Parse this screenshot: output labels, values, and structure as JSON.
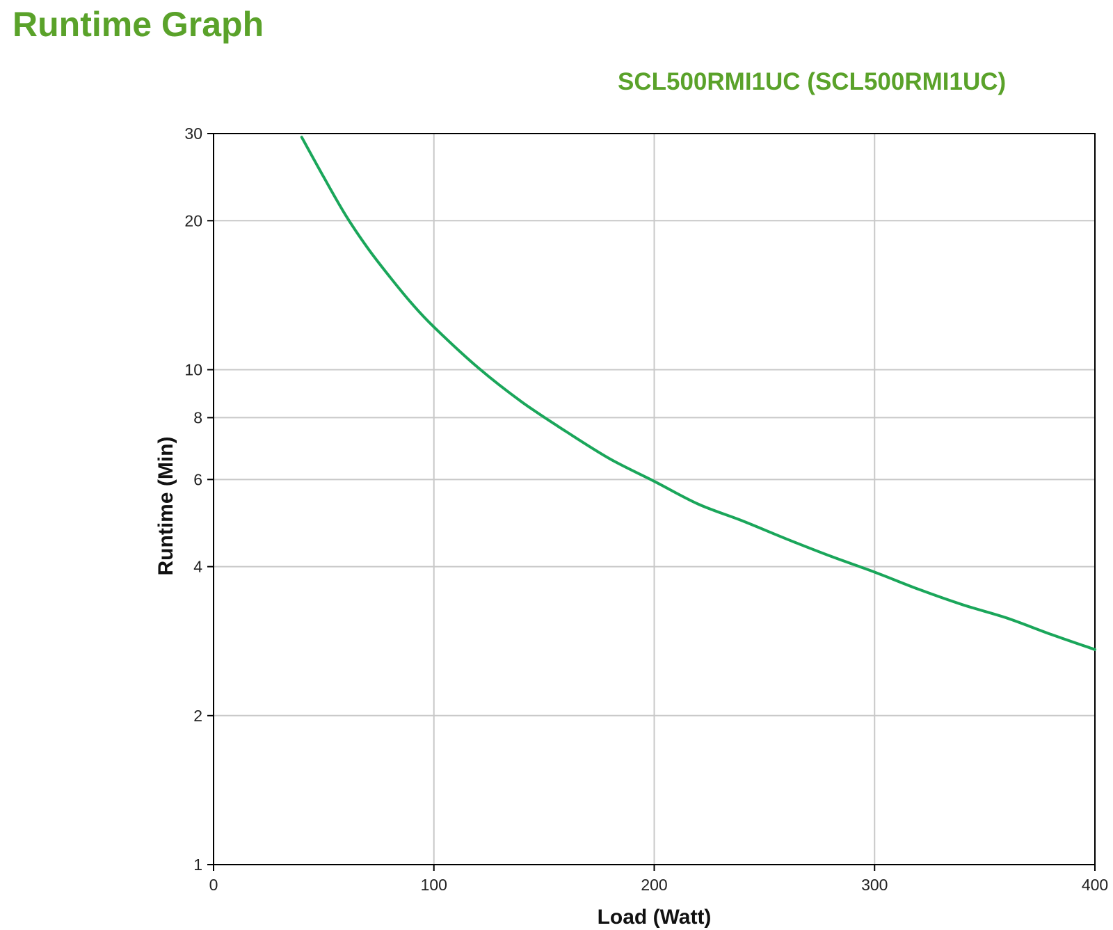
{
  "page": {
    "title": "Runtime Graph"
  },
  "chart_data": {
    "type": "line",
    "title": "SCL500RMI1UC (SCL500RMI1UC)",
    "xlabel": "Load (Watt)",
    "ylabel": "Runtime (Min)",
    "xlim": [
      0,
      400
    ],
    "ylim": [
      1,
      30
    ],
    "y_scale": "log",
    "x_ticks": [
      0,
      100,
      200,
      300,
      400
    ],
    "y_ticks": [
      1,
      2,
      4,
      6,
      8,
      10,
      20,
      30
    ],
    "grid": true,
    "legend": "none",
    "colors": {
      "line": "#1aa65a",
      "title": "#5aa22a",
      "grid": "#c8c8c8",
      "axis": "#000000"
    },
    "series": [
      {
        "x": [
          40,
          50,
          60,
          70,
          80,
          90,
          100,
          120,
          140,
          160,
          180,
          200,
          220,
          240,
          260,
          280,
          300,
          320,
          340,
          360,
          380,
          400
        ],
        "values": [
          29.5,
          24.5,
          20.5,
          17.6,
          15.4,
          13.6,
          12.2,
          10.1,
          8.6,
          7.5,
          6.6,
          5.95,
          5.35,
          4.95,
          4.55,
          4.2,
          3.9,
          3.6,
          3.35,
          3.15,
          2.92,
          2.72
        ]
      }
    ]
  }
}
